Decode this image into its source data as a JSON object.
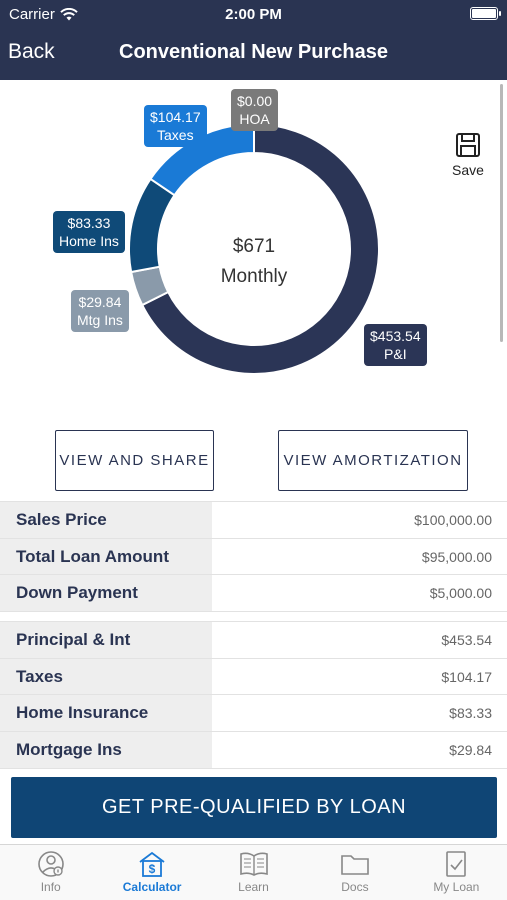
{
  "status_bar": {
    "carrier": "Carrier",
    "time": "2:00 PM"
  },
  "nav": {
    "back_label": "Back",
    "title": "Conventional New Purchase"
  },
  "save": {
    "label": "Save",
    "icon": "floppy-disk-icon"
  },
  "chart_data": {
    "type": "pie",
    "donut": true,
    "center_value": "$671",
    "center_label": "Monthly",
    "categories": [
      "P&I",
      "Mtg Ins",
      "Home Ins",
      "Taxes",
      "HOA"
    ],
    "values": [
      453.54,
      29.84,
      83.33,
      104.17,
      0.0
    ],
    "value_labels": [
      "$453.54",
      "$29.84",
      "$83.33",
      "$104.17",
      "$0.00"
    ],
    "colors": [
      "#2b3556",
      "#8a9aaa",
      "#0f4a78",
      "#1a7ad6",
      "#7a7a7a"
    ]
  },
  "buttons": {
    "view_share": "VIEW AND SHARE",
    "view_amortization": "VIEW AMORTIZATION"
  },
  "loan_summary": [
    {
      "label": "Sales Price",
      "value": "$100,000.00"
    },
    {
      "label": "Total Loan Amount",
      "value": "$95,000.00"
    },
    {
      "label": "Down Payment",
      "value": "$5,000.00"
    }
  ],
  "payment_breakdown": [
    {
      "label": "Principal & Int",
      "value": "$453.54"
    },
    {
      "label": "Taxes",
      "value": "$104.17"
    },
    {
      "label": "Home Insurance",
      "value": "$83.33"
    },
    {
      "label": "Mortgage Ins",
      "value": "$29.84"
    }
  ],
  "cta": {
    "label": "GET PRE-QUALIFIED BY LOAN"
  },
  "tabs": [
    {
      "label": "Info",
      "icon": "user-info-icon"
    },
    {
      "label": "Calculator",
      "icon": "calculator-dollar-icon",
      "active": true
    },
    {
      "label": "Learn",
      "icon": "book-icon"
    },
    {
      "label": "Docs",
      "icon": "folder-icon"
    },
    {
      "label": "My Loan",
      "icon": "checklist-icon"
    }
  ]
}
